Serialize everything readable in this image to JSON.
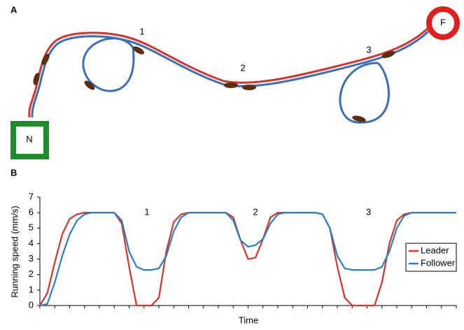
{
  "panel_a": {
    "label": "A",
    "nest": "N",
    "food": "F",
    "markers": [
      "1",
      "2",
      "3"
    ]
  },
  "chart_data": {
    "type": "line",
    "panel_label": "B",
    "xlabel": "Time",
    "ylabel": "Running speed (mm/s)",
    "x": [
      0,
      0.5,
      1,
      1.5,
      2,
      2.5,
      3,
      3.5,
      4,
      4.5,
      5,
      5.5,
      6,
      6.5,
      7,
      7.5,
      8,
      8.5,
      9,
      9.5,
      10,
      10.5,
      11,
      11.5,
      12,
      12.5,
      13,
      13.5,
      14,
      14.5,
      15,
      15.5,
      16,
      16.5,
      17,
      17.5,
      18,
      18.5,
      19,
      19.5,
      20,
      20.5,
      21,
      21.5,
      22,
      22.5,
      23,
      23.5,
      24,
      24.5,
      25,
      25.5,
      26,
      26.5,
      27,
      27.5,
      28
    ],
    "xlim": [
      0,
      28
    ],
    "ylim": [
      0,
      7
    ],
    "yticks": [
      0,
      1,
      2,
      3,
      4,
      5,
      6,
      7
    ],
    "legend": "right",
    "series": [
      {
        "name": "Leader",
        "color": "#d9312b",
        "values": [
          0,
          0.8,
          2.8,
          4.6,
          5.6,
          5.9,
          6,
          6,
          6,
          6,
          6,
          5.3,
          2.5,
          0,
          0,
          0,
          0.5,
          3.5,
          5.4,
          5.9,
          6,
          6,
          6,
          6,
          6,
          6,
          5.7,
          4.2,
          3,
          3.1,
          4.3,
          5.7,
          6,
          6,
          6,
          6,
          6,
          6,
          5.9,
          5,
          2.5,
          0.5,
          0,
          0,
          0,
          0,
          1.5,
          4,
          5.5,
          5.9,
          6,
          6,
          6,
          6,
          6,
          6,
          6
        ]
      },
      {
        "name": "Follower",
        "color": "#2a7ec4",
        "values": [
          0,
          0.1,
          1.5,
          3.2,
          4.6,
          5.5,
          5.9,
          6,
          6,
          6,
          6,
          5.5,
          3.5,
          2.5,
          2.3,
          2.3,
          2.4,
          3.2,
          4.8,
          5.7,
          6,
          6,
          6,
          6,
          6,
          6,
          5.5,
          4.2,
          3.8,
          3.9,
          4.3,
          5.3,
          5.9,
          6,
          6,
          6,
          6,
          6,
          5.9,
          5,
          3.2,
          2.4,
          2.3,
          2.3,
          2.3,
          2.3,
          2.5,
          3.5,
          5,
          5.8,
          6,
          6,
          6,
          6,
          6,
          6,
          6
        ]
      }
    ],
    "annotations": [
      {
        "text": "1",
        "x": 7.2,
        "y": 6
      },
      {
        "text": "2",
        "x": 14.5,
        "y": 6
      },
      {
        "text": "3",
        "x": 22.1,
        "y": 6
      }
    ]
  }
}
